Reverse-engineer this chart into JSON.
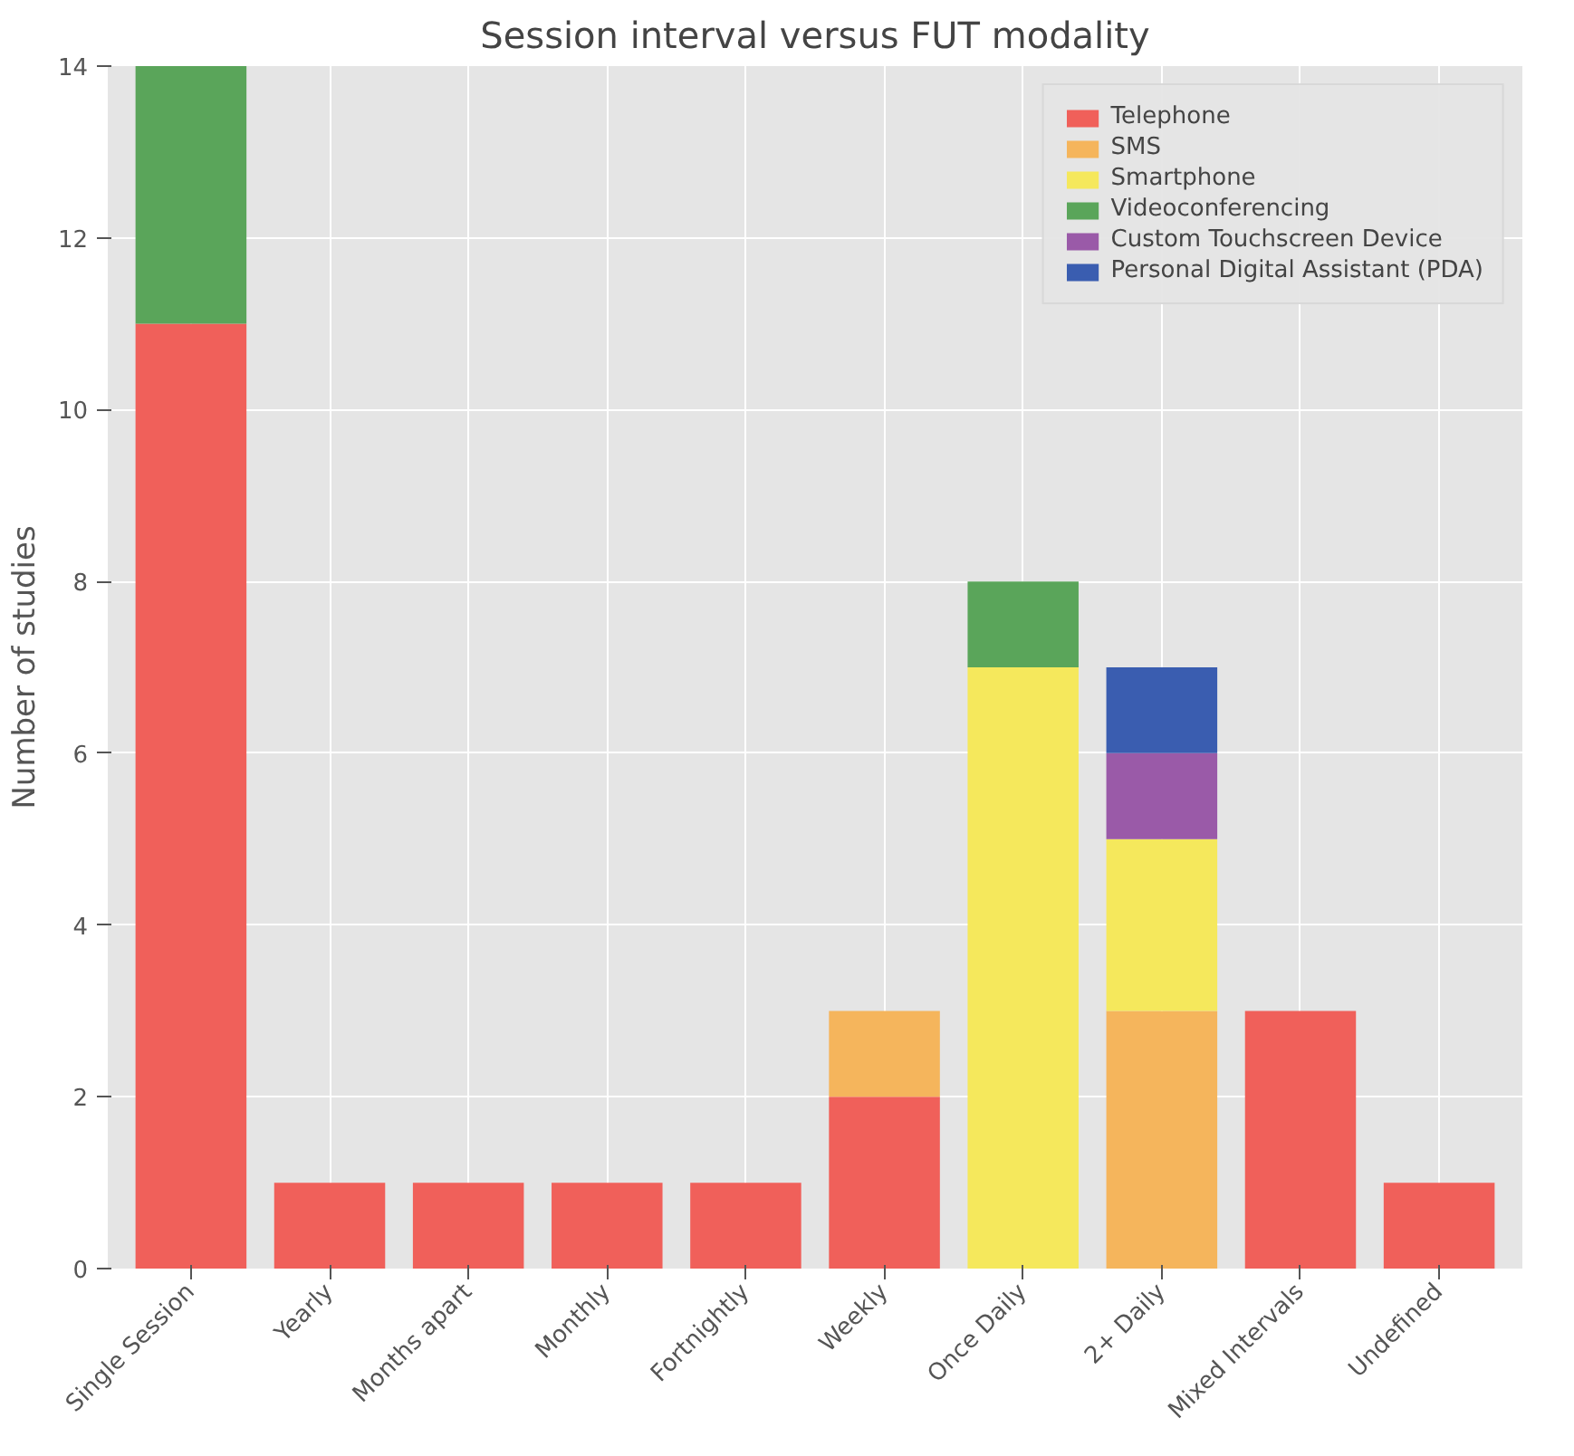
{
  "chart_data": {
    "type": "bar",
    "title": "Session interval versus FUT modality",
    "ylabel": "Number of studies",
    "categories": [
      "Single Session",
      "Yearly",
      "Months apart",
      "Monthly",
      "Fortnightly",
      "Weekly",
      "Once Daily",
      "2+ Daily",
      "Mixed Intervals",
      "Undefined"
    ],
    "stacked": true,
    "ylim": [
      0,
      14
    ],
    "yticks": [
      0,
      2,
      4,
      6,
      8,
      10,
      12,
      14
    ],
    "grid": true,
    "legend": "top right",
    "series": [
      {
        "name": "Telephone",
        "color": "#f0605a",
        "values": [
          11,
          1,
          1,
          1,
          1,
          2,
          0,
          0,
          3,
          1
        ]
      },
      {
        "name": "SMS",
        "color": "#f5b55c",
        "values": [
          0,
          0,
          0,
          0,
          0,
          1,
          0,
          3,
          0,
          0
        ]
      },
      {
        "name": "Smartphone",
        "color": "#f5e85c",
        "values": [
          0,
          0,
          0,
          0,
          0,
          0,
          7,
          2,
          0,
          0
        ]
      },
      {
        "name": "Videoconferencing",
        "color": "#5aa55a",
        "values": [
          3,
          0,
          0,
          0,
          0,
          0,
          1,
          0,
          0,
          0
        ]
      },
      {
        "name": "Custom Touchscreen Device",
        "color": "#9a5aa8",
        "values": [
          0,
          0,
          0,
          0,
          0,
          0,
          0,
          1,
          0,
          0
        ]
      },
      {
        "name": "Personal Digital Assistant (PDA)",
        "color": "#3a5db0",
        "values": [
          0,
          0,
          0,
          0,
          0,
          0,
          0,
          1,
          0,
          0
        ]
      }
    ]
  }
}
